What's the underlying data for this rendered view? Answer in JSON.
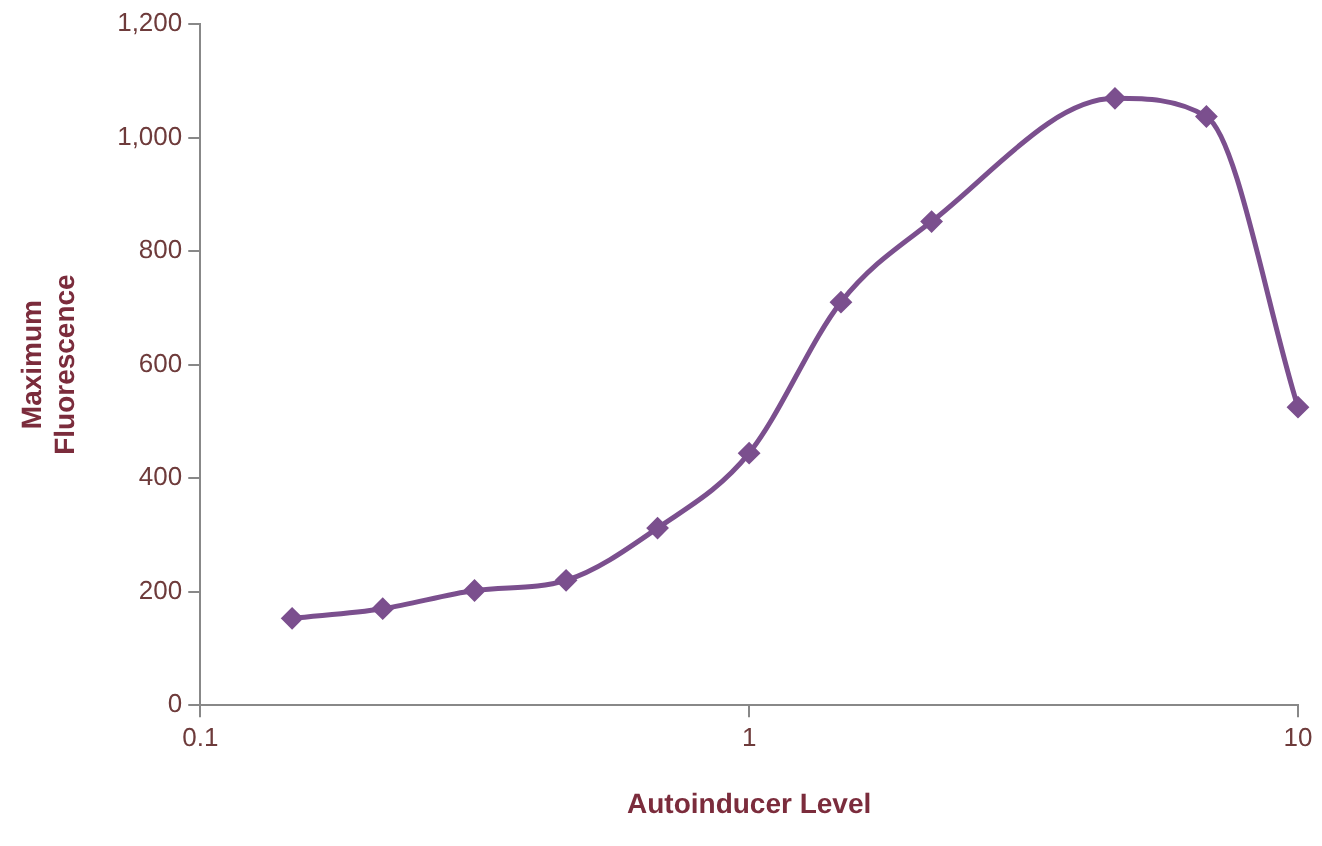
{
  "chart_data": {
    "type": "line",
    "xlabel": "Autoinducer Level",
    "ylabel": "Maximum Fluorescence",
    "log": "x",
    "x": [
      0.147,
      0.215,
      0.316,
      0.464,
      0.681,
      1.0,
      1.47,
      2.15,
      4.64,
      6.81,
      10
    ],
    "series": [
      {
        "color": "#7b4f8e",
        "values": [
          153,
          170,
          202,
          220,
          312,
          444,
          710,
          852,
          1069,
          1037,
          525
        ]
      }
    ],
    "xlim": [
      0.1,
      10
    ],
    "xticks": [
      0.1,
      1,
      10
    ],
    "ylim": [
      0,
      1200
    ],
    "yticks": [
      0,
      200,
      400,
      600,
      800,
      {
        "value": 1000,
        "label": "1,000"
      },
      {
        "value": 1200,
        "label": "1,200"
      }
    ],
    "grid": false,
    "legend": false,
    "marker": "diamond",
    "line_style": "solid"
  }
}
